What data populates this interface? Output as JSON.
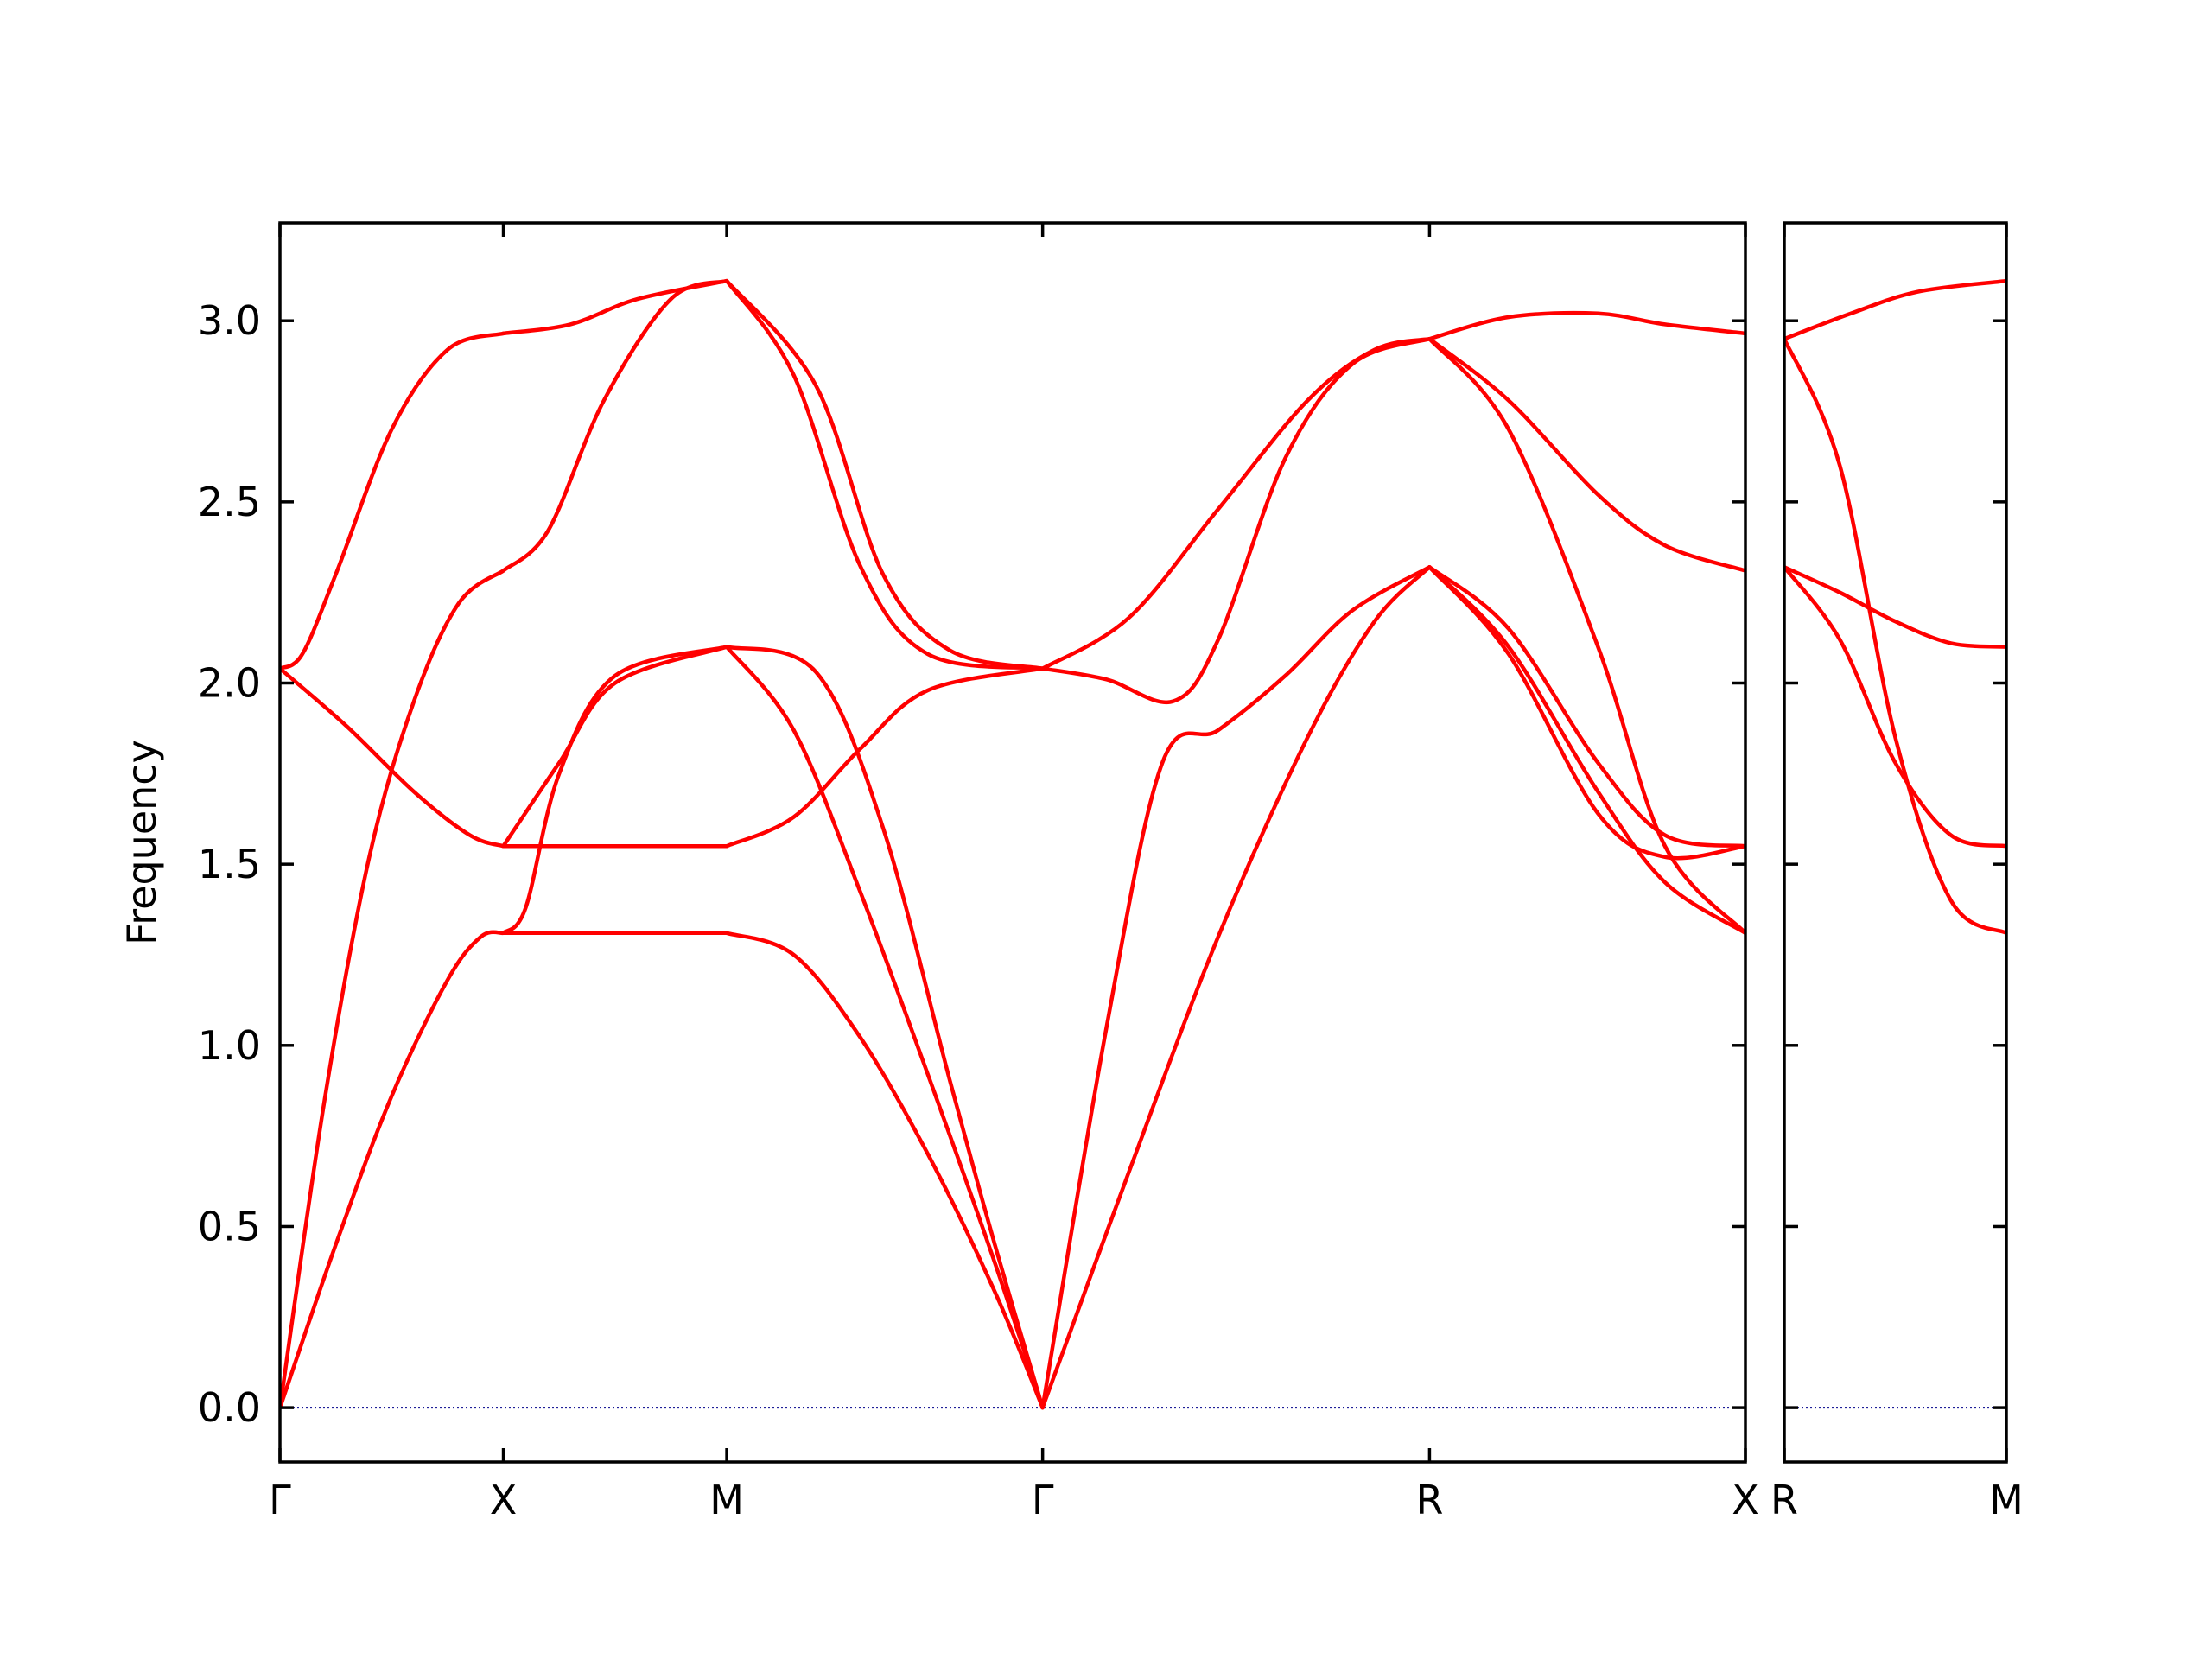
{
  "chart_data": {
    "type": "line",
    "ylabel": "Frequency",
    "ylim": [
      -0.15,
      3.27
    ],
    "yticks": [
      0.0,
      0.5,
      1.0,
      1.5,
      2.0,
      2.5,
      3.0
    ],
    "ytick_labels": [
      "0.0",
      "0.5",
      "1.0",
      "1.5",
      "2.0",
      "2.5",
      "3.0"
    ],
    "line_color": "#ff0000",
    "zero_line_color": "#00008b",
    "grid": false,
    "panels": [
      {
        "name": "main",
        "xticks": [
          {
            "pos": 0,
            "label": "Γ"
          },
          {
            "pos": 1,
            "label": "X"
          },
          {
            "pos": 2,
            "label": "M"
          },
          {
            "pos": 3.414,
            "label": "Γ"
          },
          {
            "pos": 5.146,
            "label": "R"
          },
          {
            "pos": 6.56,
            "label": "X"
          }
        ],
        "xlim": [
          0,
          6.56
        ],
        "segments": [
          {
            "x0": 0,
            "x1": 1,
            "bands": [
              [
                [
                  0,
                  0
                ],
                [
                  0.25,
                  0.45
                ],
                [
                  0.5,
                  0.86
                ],
                [
                  0.75,
                  1.18
                ],
                [
                  0.9,
                  1.3
                ],
                [
                  1,
                  1.31
                ]
              ],
              [
                [
                  0,
                  0
                ],
                [
                  0.2,
                  0.85
                ],
                [
                  0.4,
                  1.52
                ],
                [
                  0.6,
                  1.95
                ],
                [
                  0.8,
                  2.22
                ],
                [
                  1,
                  2.31
                ]
              ],
              [
                [
                  0,
                  2.04
                ],
                [
                  0.3,
                  1.88
                ],
                [
                  0.6,
                  1.7
                ],
                [
                  0.85,
                  1.58
                ],
                [
                  1,
                  1.55
                ]
              ],
              [
                [
                  0,
                  2.04
                ],
                [
                  0.1,
                  2.08
                ],
                [
                  0.25,
                  2.3
                ],
                [
                  0.5,
                  2.7
                ],
                [
                  0.75,
                  2.92
                ],
                [
                  1,
                  2.965
                ]
              ]
            ]
          },
          {
            "x0": 1,
            "x1": 2,
            "bands": [
              [
                [
                  1,
                  1.31
                ],
                [
                  1.5,
                  1.31
                ],
                [
                  2,
                  1.31
                ]
              ],
              [
                [
                  1,
                  1.31
                ],
                [
                  1.1,
                  1.38
                ],
                [
                  1.25,
                  1.75
                ],
                [
                  1.5,
                  2.02
                ],
                [
                  2,
                  2.1
                ]
              ],
              [
                [
                  1,
                  1.55
                ],
                [
                  1.5,
                  1.55
                ],
                [
                  2,
                  1.55
                ]
              ],
              [
                [
                  1,
                  1.55
                ],
                [
                  1.25,
                  1.78
                ],
                [
                  1.5,
                  2.0
                ],
                [
                  2,
                  2.1
                ]
              ],
              [
                [
                  1,
                  2.31
                ],
                [
                  1.2,
                  2.42
                ],
                [
                  1.45,
                  2.78
                ],
                [
                  1.75,
                  3.06
                ],
                [
                  2,
                  3.11
                ]
              ],
              [
                [
                  1,
                  2.965
                ],
                [
                  1.3,
                  2.99
                ],
                [
                  1.6,
                  3.06
                ],
                [
                  2,
                  3.11
                ]
              ]
            ]
          },
          {
            "x0": 2,
            "x1": 3.414,
            "bands": [
              [
                [
                  2,
                  1.31
                ],
                [
                  2.3,
                  1.25
                ],
                [
                  2.6,
                  1.02
                ],
                [
                  2.9,
                  0.7
                ],
                [
                  3.2,
                  0.32
                ],
                [
                  3.414,
                  0
                ]
              ],
              [
                [
                  2,
                  2.1
                ],
                [
                  2.3,
                  1.87
                ],
                [
                  2.6,
                  1.42
                ],
                [
                  2.9,
                  0.92
                ],
                [
                  3.2,
                  0.4
                ],
                [
                  3.414,
                  0
                ]
              ],
              [
                [
                  2,
                  2.1
                ],
                [
                  2.4,
                  2.03
                ],
                [
                  2.7,
                  1.6
                ],
                [
                  3.0,
                  0.9
                ],
                [
                  3.2,
                  0.45
                ],
                [
                  3.414,
                  0
                ]
              ],
              [
                [
                  2,
                  1.55
                ],
                [
                  2.3,
                  1.63
                ],
                [
                  2.6,
                  1.82
                ],
                [
                  2.9,
                  1.98
                ],
                [
                  3.414,
                  2.04
                ]
              ],
              [
                [
                  2,
                  3.11
                ],
                [
                  2.3,
                  2.85
                ],
                [
                  2.6,
                  2.32
                ],
                [
                  2.9,
                  2.08
                ],
                [
                  3.414,
                  2.04
                ]
              ],
              [
                [
                  2,
                  3.11
                ],
                [
                  2.4,
                  2.82
                ],
                [
                  2.7,
                  2.3
                ],
                [
                  3.0,
                  2.09
                ],
                [
                  3.414,
                  2.04
                ]
              ]
            ]
          },
          {
            "x0": 3.414,
            "x1": 5.146,
            "bands": [
              [
                [
                  3.414,
                  0
                ],
                [
                  3.8,
                  0.65
                ],
                [
                  4.2,
                  1.3
                ],
                [
                  4.6,
                  1.85
                ],
                [
                  4.9,
                  2.17
                ],
                [
                  5.146,
                  2.32
                ]
              ],
              [
                [
                  3.414,
                  0
                ],
                [
                  3.7,
                  1.05
                ],
                [
                  3.95,
                  1.78
                ],
                [
                  4.2,
                  1.87
                ],
                [
                  4.5,
                  2.02
                ],
                [
                  4.8,
                  2.2
                ],
                [
                  5.146,
                  2.32
                ]
              ],
              [
                [
                  3.414,
                  2.04
                ],
                [
                  3.7,
                  2.01
                ],
                [
                  4.0,
                  1.95
                ],
                [
                  4.2,
                  2.12
                ],
                [
                  4.5,
                  2.62
                ],
                [
                  4.8,
                  2.88
                ],
                [
                  5.146,
                  2.95
                ]
              ],
              [
                [
                  3.414,
                  2.04
                ],
                [
                  3.8,
                  2.18
                ],
                [
                  4.2,
                  2.48
                ],
                [
                  4.6,
                  2.78
                ],
                [
                  4.9,
                  2.92
                ],
                [
                  5.146,
                  2.95
                ]
              ]
            ]
          },
          {
            "x0": 5.146,
            "x1": 6.56,
            "bands": [
              [
                [
                  5.146,
                  2.32
                ],
                [
                  5.5,
                  2.1
                ],
                [
                  5.9,
                  1.7
                ],
                [
                  6.2,
                  1.45
                ],
                [
                  6.56,
                  1.31
                ]
              ],
              [
                [
                  5.146,
                  2.32
                ],
                [
                  5.5,
                  2.08
                ],
                [
                  5.9,
                  1.64
                ],
                [
                  6.2,
                  1.52
                ],
                [
                  6.56,
                  1.55
                ]
              ],
              [
                [
                  5.146,
                  2.32
                ],
                [
                  5.5,
                  2.15
                ],
                [
                  5.9,
                  1.78
                ],
                [
                  6.2,
                  1.58
                ],
                [
                  6.56,
                  1.55
                ]
              ],
              [
                [
                  5.146,
                  2.95
                ],
                [
                  5.5,
                  2.7
                ],
                [
                  5.9,
                  2.1
                ],
                [
                  6.2,
                  1.55
                ],
                [
                  6.56,
                  1.31
                ]
              ],
              [
                [
                  5.146,
                  2.95
                ],
                [
                  5.5,
                  2.78
                ],
                [
                  5.9,
                  2.52
                ],
                [
                  6.2,
                  2.38
                ],
                [
                  6.56,
                  2.31
                ]
              ],
              [
                [
                  5.146,
                  2.95
                ],
                [
                  5.5,
                  3.01
                ],
                [
                  5.9,
                  3.02
                ],
                [
                  6.2,
                  2.99
                ],
                [
                  6.56,
                  2.965
                ]
              ]
            ]
          }
        ]
      },
      {
        "name": "right",
        "xticks": [
          {
            "pos": 0,
            "label": "R"
          },
          {
            "pos": 1,
            "label": "M"
          }
        ],
        "xlim": [
          0,
          1
        ],
        "segments": [
          {
            "x0": 0,
            "x1": 1,
            "bands": [
              [
                [
                  0,
                  2.95
                ],
                [
                  0.3,
                  3.02
                ],
                [
                  0.6,
                  3.08
                ],
                [
                  1,
                  3.11
                ]
              ],
              [
                [
                  0,
                  2.95
                ],
                [
                  0.25,
                  2.6
                ],
                [
                  0.5,
                  1.85
                ],
                [
                  0.75,
                  1.4
                ],
                [
                  1,
                  1.31
                ]
              ],
              [
                [
                  0,
                  2.32
                ],
                [
                  0.25,
                  2.25
                ],
                [
                  0.5,
                  2.17
                ],
                [
                  0.75,
                  2.11
                ],
                [
                  1,
                  2.1
                ]
              ],
              [
                [
                  0,
                  2.32
                ],
                [
                  0.25,
                  2.12
                ],
                [
                  0.5,
                  1.78
                ],
                [
                  0.75,
                  1.58
                ],
                [
                  1,
                  1.55
                ]
              ]
            ]
          }
        ]
      }
    ]
  }
}
